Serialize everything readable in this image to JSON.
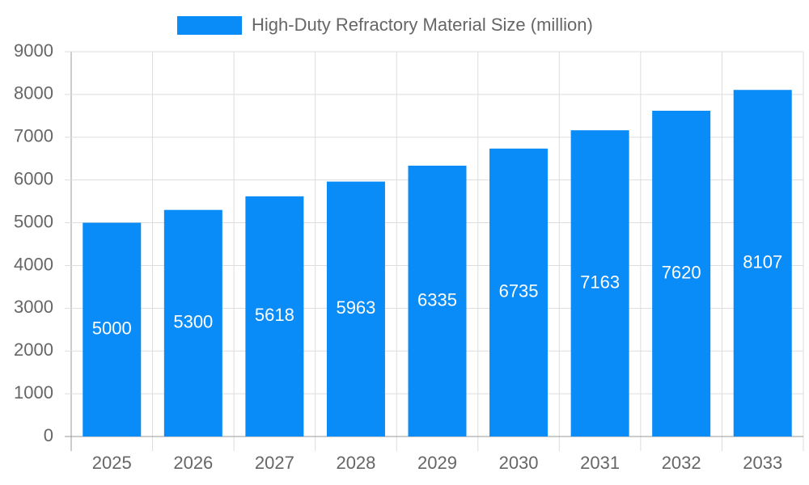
{
  "chart_data": {
    "type": "bar",
    "categories": [
      "2025",
      "2026",
      "2027",
      "2028",
      "2029",
      "2030",
      "2031",
      "2032",
      "2033"
    ],
    "series": [
      {
        "name": "High-Duty Refractory Material Size (million)",
        "color": "#0a8cf8",
        "values": [
          5000,
          5300,
          5618,
          5963,
          6335,
          6735,
          7163,
          7620,
          8107
        ]
      }
    ],
    "ylim": [
      0,
      9000
    ],
    "yticks": [
      0,
      1000,
      2000,
      3000,
      4000,
      5000,
      6000,
      7000,
      8000,
      9000
    ],
    "grid": true,
    "legend": "top"
  }
}
